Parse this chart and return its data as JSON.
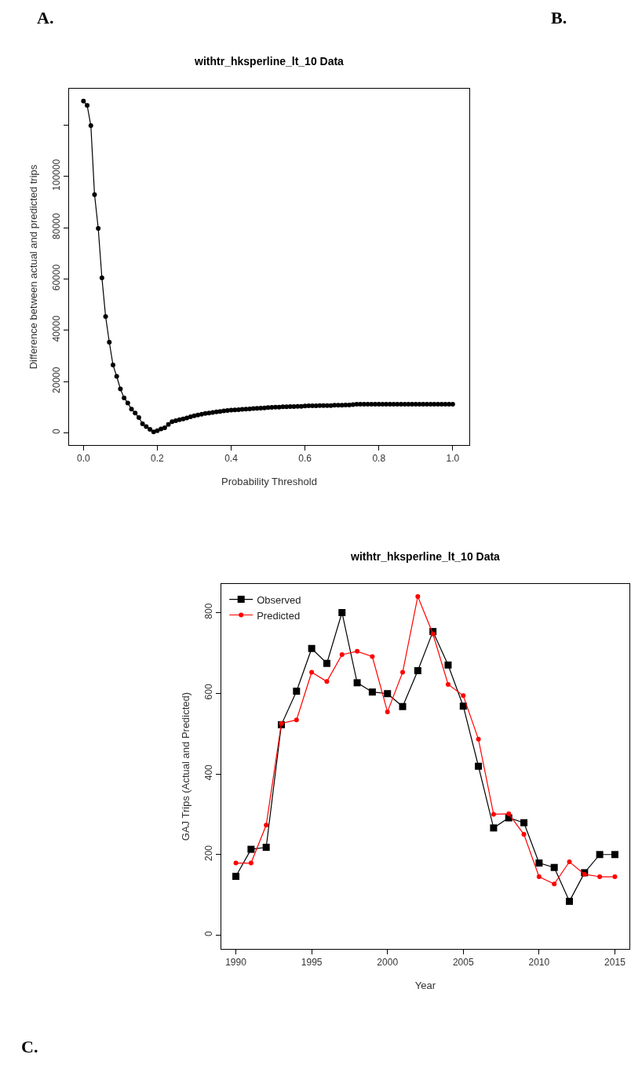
{
  "chart_data": [
    {
      "type": "line",
      "title": "withtr_hksperline_lt_10 Data",
      "xlabel": "Probability Threshold",
      "ylabel": "Difference between actual and predicted trips",
      "annotations": [
        "A.",
        "B."
      ],
      "x": [
        0,
        0.01,
        0.02,
        0.03,
        0.04,
        0.05,
        0.06,
        0.07,
        0.08,
        0.09,
        0.1,
        0.11,
        0.12,
        0.13,
        0.14,
        0.15,
        0.16,
        0.17,
        0.18,
        0.19,
        0.2,
        0.21,
        0.22,
        0.23,
        0.24,
        0.25,
        0.26,
        0.27,
        0.28,
        0.29,
        0.3,
        0.31,
        0.32,
        0.33,
        0.34,
        0.35,
        0.36,
        0.37,
        0.38,
        0.39,
        0.4,
        0.41,
        0.42,
        0.43,
        0.44,
        0.45,
        0.46,
        0.47,
        0.48,
        0.49,
        0.5,
        0.51,
        0.52,
        0.53,
        0.54,
        0.55,
        0.56,
        0.57,
        0.58,
        0.59,
        0.6,
        0.61,
        0.62,
        0.63,
        0.64,
        0.65,
        0.66,
        0.67,
        0.68,
        0.69,
        0.7,
        0.71,
        0.72,
        0.73,
        0.74,
        0.75,
        0.76,
        0.77,
        0.78,
        0.79,
        0.8,
        0.81,
        0.82,
        0.83,
        0.84,
        0.85,
        0.86,
        0.87,
        0.88,
        0.89,
        0.9,
        0.91,
        0.92,
        0.93,
        0.94,
        0.95,
        0.96,
        0.97,
        0.98,
        0.99,
        1
      ],
      "values": [
        129400,
        127700,
        119800,
        92900,
        79700,
        60400,
        45300,
        35300,
        26400,
        22000,
        17100,
        13600,
        11600,
        9200,
        7700,
        5900,
        3500,
        2400,
        1300,
        300,
        800,
        1500,
        1900,
        3200,
        4300,
        4700,
        5100,
        5400,
        5800,
        6200,
        6600,
        6900,
        7200,
        7500,
        7700,
        7900,
        8100,
        8300,
        8500,
        8700,
        8800,
        8900,
        9000,
        9100,
        9200,
        9300,
        9400,
        9500,
        9600,
        9700,
        9800,
        9900,
        10000,
        10000,
        10100,
        10100,
        10200,
        10200,
        10300,
        10300,
        10400,
        10500,
        10500,
        10500,
        10600,
        10600,
        10600,
        10600,
        10700,
        10700,
        10700,
        10800,
        10800,
        11000,
        11100,
        11100,
        11100,
        11100,
        11100,
        11100,
        11100,
        11100,
        11100,
        11100,
        11100,
        11100,
        11100,
        11100,
        11100,
        11100,
        11100,
        11100,
        11100,
        11100,
        11100,
        11100,
        11100,
        11100,
        11100,
        11100,
        11100
      ],
      "color": "#000000",
      "marker": "circle",
      "line_style": "solid",
      "xlim": [
        -0.039,
        1.045
      ],
      "ylim": [
        -4800,
        134200
      ],
      "xticks": [
        {
          "value": 0,
          "label": "0.0"
        },
        {
          "value": 0.2,
          "label": "0.2"
        },
        {
          "value": 0.4,
          "label": "0.4"
        },
        {
          "value": 0.6,
          "label": "0.6"
        },
        {
          "value": 0.8,
          "label": "0.8"
        },
        {
          "value": 1,
          "label": "1.0"
        }
      ],
      "yticks": [
        0,
        20000,
        40000,
        60000,
        80000,
        100000,
        {
          "value": 120000,
          "label": null
        }
      ]
    },
    {
      "type": "line",
      "title": "withtr_hksperline_lt_10 Data",
      "xlabel": "Year",
      "ylabel": "GAJ Trips (Actual and Predicted)",
      "annotations": [
        "C."
      ],
      "x": [
        1990,
        1991,
        1992,
        1993,
        1994,
        1995,
        1996,
        1997,
        1998,
        1999,
        2000,
        2001,
        2002,
        2003,
        2004,
        2005,
        2006,
        2007,
        2008,
        2009,
        2010,
        2011,
        2012,
        2013,
        2014,
        2015
      ],
      "series": [
        {
          "name": "Observed",
          "color": "#000000",
          "marker": "square",
          "values": [
            146,
            213,
            218,
            522,
            605,
            711,
            674,
            800,
            626,
            603,
            599,
            567,
            656,
            753,
            670,
            568,
            419,
            266,
            291,
            279,
            179,
            168,
            84,
            155,
            200,
            200
          ]
        },
        {
          "name": "Predicted",
          "color": "#ff0000",
          "marker": "circle",
          "values": [
            179,
            179,
            273,
            525,
            534,
            652,
            629,
            696,
            704,
            691,
            554,
            652,
            840,
            747,
            622,
            594,
            486,
            300,
            301,
            250,
            145,
            127,
            182,
            151,
            145,
            145
          ]
        }
      ],
      "line_style": "solid",
      "legend": "top left",
      "xlim": [
        1989.04,
        2015.96
      ],
      "ylim": [
        -34,
        871
      ],
      "xticks": [
        1990,
        1995,
        2000,
        2005,
        2010,
        2015
      ],
      "yticks": [
        0,
        200,
        400,
        600,
        800
      ]
    }
  ]
}
